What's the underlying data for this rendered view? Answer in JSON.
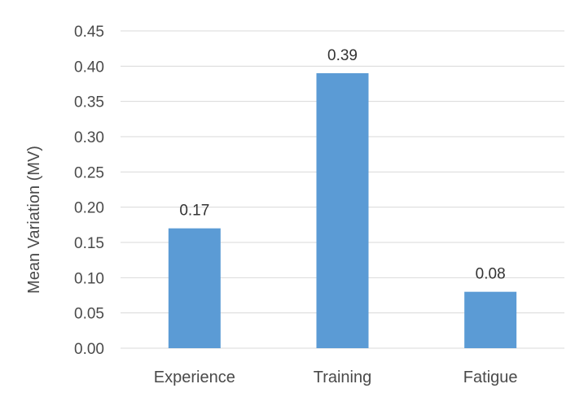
{
  "chart_data": {
    "type": "bar",
    "categories": [
      "Experience",
      "Training",
      "Fatigue"
    ],
    "values": [
      0.17,
      0.39,
      0.08
    ],
    "data_labels": [
      "0.17",
      "0.39",
      "0.08"
    ],
    "title": "",
    "xlabel": "",
    "ylabel": "Mean Variation (MV)",
    "ylim": [
      0,
      0.45
    ],
    "y_ticks": [
      "0.00",
      "0.05",
      "0.10",
      "0.15",
      "0.20",
      "0.25",
      "0.30",
      "0.35",
      "0.40",
      "0.45"
    ],
    "grid": true,
    "legend": "none",
    "bar_color": "#5B9BD5",
    "grid_color": "#d9d9d9"
  }
}
